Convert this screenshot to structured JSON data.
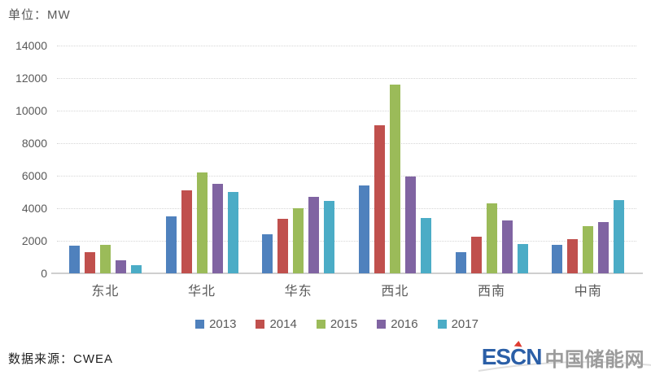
{
  "page": {
    "unit_label": "单位：MW",
    "source_label": "数据来源：CWEA"
  },
  "logo": {
    "escn": "ESCN",
    "cn": "中国储能网",
    "blue": "#2b5fa7",
    "gray": "#9b9b9b",
    "accent_red": "#e03c31"
  },
  "chart_data": {
    "type": "bar",
    "title": "",
    "ylabel": "单位：MW",
    "xlabel": "",
    "ylim": [
      0,
      14000
    ],
    "ytick_step": 2000,
    "yticks": [
      "14000",
      "12000",
      "10000",
      "8000",
      "6000",
      "4000",
      "2000",
      "0"
    ],
    "grid": "horizontal-dotted",
    "legend_position": "bottom",
    "categories": [
      "东北",
      "华北",
      "华东",
      "西北",
      "西南",
      "中南"
    ],
    "series": [
      {
        "name": "2013",
        "color": "#4F81BD",
        "values": [
          1700,
          3500,
          2400,
          5400,
          1300,
          1750
        ]
      },
      {
        "name": "2014",
        "color": "#C0504D",
        "values": [
          1300,
          5100,
          3350,
          9100,
          2250,
          2100
        ]
      },
      {
        "name": "2015",
        "color": "#9BBB59",
        "values": [
          1750,
          6200,
          4000,
          11600,
          4300,
          2900
        ]
      },
      {
        "name": "2016",
        "color": "#8064A2",
        "values": [
          800,
          5500,
          4700,
          5950,
          3250,
          3150
        ]
      },
      {
        "name": "2017",
        "color": "#4BACC6",
        "values": [
          500,
          5000,
          4450,
          3400,
          1800,
          4500
        ]
      }
    ]
  }
}
